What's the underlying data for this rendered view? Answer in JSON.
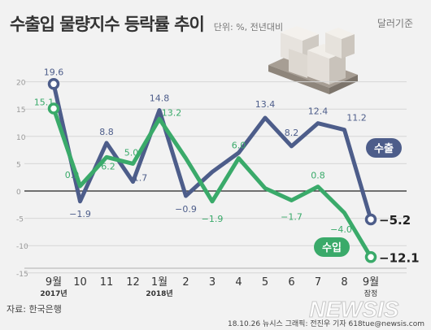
{
  "header": {
    "title": "수출입 물량지수 등락률 추이",
    "unit": "단위: %, 전년대비",
    "basis": "달러기준"
  },
  "footer": {
    "source": "자료: 한국은행",
    "credit": "18.10.26 뉴시스 그래픽: 전진우 기자 618tue@newsis.com",
    "watermark": "NEWSIS"
  },
  "colors": {
    "exports": "#4d5d8a",
    "imports": "#3aaa6a",
    "axis": "#222222",
    "grid": "#d6d6d6"
  },
  "chart_data": {
    "type": "line",
    "categories": [
      "9월",
      "10",
      "11",
      "12",
      "1월",
      "2",
      "3",
      "4",
      "5",
      "6",
      "7",
      "8",
      "9월"
    ],
    "category_sublabels": [
      "2017년",
      "",
      "",
      "",
      "2018년",
      "",
      "",
      "",
      "",
      "",
      "",
      "",
      "잠정"
    ],
    "ylim": [
      -15,
      20
    ],
    "yticks": [
      20,
      15,
      10,
      5,
      0,
      -5,
      -10,
      -15
    ],
    "series": [
      {
        "name": "수출",
        "values": [
          19.6,
          -1.9,
          8.8,
          1.7,
          14.8,
          -0.9,
          3.5,
          7.0,
          13.4,
          8.2,
          12.4,
          11.2,
          -5.2
        ],
        "labels": [
          "19.6",
          "−1.9",
          "8.8",
          "1.7",
          "14.8",
          "−0.9",
          "",
          "",
          "13.4",
          "8.2",
          "12.4",
          "11.2",
          "−5.2"
        ]
      },
      {
        "name": "수입",
        "values": [
          15.1,
          0.9,
          6.2,
          5.0,
          13.2,
          6.0,
          -1.9,
          6.0,
          0.5,
          -1.7,
          0.8,
          -4.0,
          -12.1
        ],
        "labels": [
          "15.1",
          "0.9",
          "6.2",
          "5.0",
          "13.2",
          "",
          "−1.9",
          "6.0",
          "",
          "−1.7",
          "0.8",
          "−4.0",
          "−12.1"
        ]
      }
    ]
  }
}
